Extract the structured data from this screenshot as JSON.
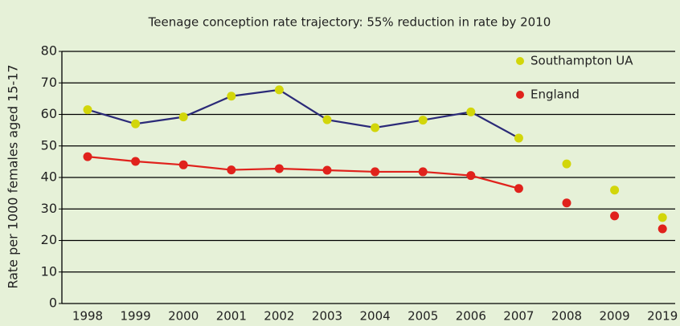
{
  "chart_data": {
    "type": "line",
    "title": "Teenage conception rate trajectory: 55% reduction in rate by 2010",
    "y_label": "Rate per 1000 females aged 15-17",
    "categories": [
      "1998",
      "1999",
      "2000",
      "2001",
      "2002",
      "2003",
      "2004",
      "2005",
      "2006",
      "2007",
      "2008",
      "2009",
      "2019"
    ],
    "series": [
      {
        "name": "Southampton UA",
        "color": "#d2d60a",
        "line_color": "#2b2a78",
        "values": [
          61.5,
          57,
          59.2,
          65.8,
          67.8,
          58.3,
          55.8,
          58.2,
          60.8,
          52.5,
          44.3,
          36,
          27.3
        ]
      },
      {
        "name": "England",
        "color": "#e0221c",
        "line_color": "#e0221c",
        "values": [
          46.6,
          45.1,
          44,
          42.4,
          42.8,
          42.3,
          41.8,
          41.8,
          40.6,
          36.5,
          31.9,
          27.8,
          23.7
        ]
      }
    ],
    "ylim": [
      0,
      80
    ],
    "yticks": [
      0,
      10,
      20,
      30,
      40,
      50,
      60,
      70,
      80
    ],
    "grid": true,
    "legend": "top-right"
  }
}
